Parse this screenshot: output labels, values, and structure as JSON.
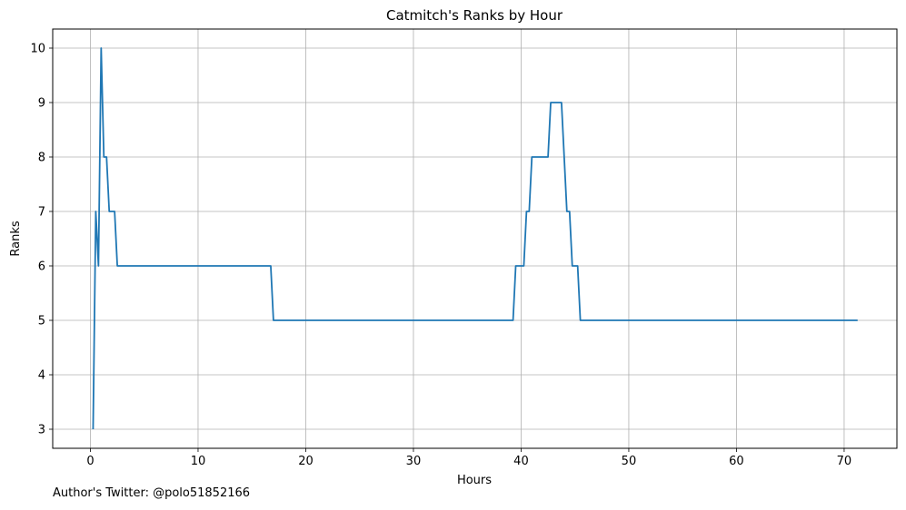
{
  "chart_data": {
    "type": "line",
    "title": "Catmitch's Ranks by Hour",
    "xlabel": "Hours",
    "ylabel": "Ranks",
    "xlim": [
      -3.5,
      74.9
    ],
    "ylim": [
      2.65,
      10.35
    ],
    "xticks": [
      0,
      10,
      20,
      30,
      40,
      50,
      60,
      70
    ],
    "yticks": [
      3,
      4,
      5,
      6,
      7,
      8,
      9,
      10
    ],
    "grid": true,
    "line_color": "#1f77b4",
    "series": [
      {
        "x": [
          0.25,
          0.5,
          0.75,
          1.0,
          1.25,
          1.5,
          1.75,
          2.0,
          2.25,
          2.5,
          16.75,
          17.0,
          39.25,
          39.5,
          40.25,
          40.5,
          40.75,
          41.0,
          42.5,
          42.75,
          43.5,
          43.75,
          44.25,
          44.5,
          44.75,
          45.0,
          45.25,
          45.5,
          71.25
        ],
        "y": [
          3,
          7,
          6,
          10,
          8,
          8,
          7,
          7,
          7,
          6,
          6,
          5,
          5,
          6,
          6,
          7,
          7,
          8,
          8,
          9,
          9,
          9,
          7,
          7,
          6,
          6,
          6,
          5,
          5
        ]
      }
    ]
  },
  "footer": {
    "credit": "Author's Twitter: @polo51852166"
  }
}
